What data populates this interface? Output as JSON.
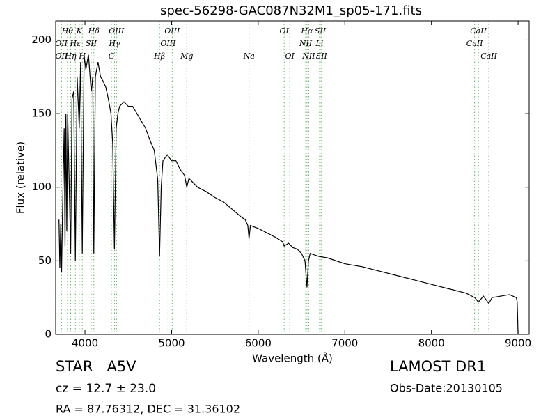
{
  "chart_data": {
    "type": "line",
    "title": "spec-56298-GAC087N32M1_sp05-171.fits",
    "x_label": "Wavelength (Å)",
    "y_label": "Flux (relative)",
    "xlim": [
      3662,
      9128
    ],
    "ylim": [
      0,
      213
    ],
    "xticks": [
      4000,
      5000,
      6000,
      7000,
      8000,
      9000
    ],
    "yticks": [
      0,
      50,
      100,
      150,
      200
    ],
    "grid": false,
    "color": "#000000",
    "line_marker_color": "#5cb85c",
    "x": [
      3700,
      3710,
      3720,
      3730,
      3740,
      3760,
      3770,
      3780,
      3790,
      3800,
      3815,
      3835,
      3850,
      3870,
      3889,
      3910,
      3934,
      3950,
      3969,
      3990,
      4010,
      4040,
      4072,
      4090,
      4102,
      4120,
      4150,
      4180,
      4210,
      4240,
      4270,
      4300,
      4320,
      4340,
      4360,
      4380,
      4400,
      4450,
      4500,
      4550,
      4600,
      4650,
      4700,
      4750,
      4800,
      4840,
      4861,
      4880,
      4900,
      4950,
      5000,
      5050,
      5100,
      5150,
      5175,
      5200,
      5300,
      5400,
      5500,
      5600,
      5700,
      5800,
      5850,
      5880,
      5894,
      5910,
      6000,
      6100,
      6200,
      6280,
      6300,
      6350,
      6400,
      6450,
      6500,
      6540,
      6563,
      6580,
      6600,
      6700,
      6800,
      6900,
      7000,
      7200,
      7400,
      7600,
      7800,
      8000,
      8200,
      8400,
      8500,
      8542,
      8600,
      8662,
      8700,
      8800,
      8900,
      8980,
      8990,
      9000
    ],
    "values": [
      78,
      45,
      75,
      42,
      80,
      140,
      60,
      150,
      70,
      150,
      110,
      55,
      160,
      165,
      50,
      175,
      140,
      185,
      55,
      190,
      180,
      190,
      165,
      175,
      55,
      175,
      185,
      175,
      172,
      168,
      160,
      150,
      130,
      58,
      140,
      150,
      155,
      158,
      155,
      155,
      150,
      145,
      140,
      132,
      125,
      105,
      53,
      100,
      118,
      122,
      118,
      118,
      112,
      108,
      100,
      106,
      100,
      97,
      93,
      90,
      85,
      80,
      78,
      74,
      65,
      74,
      72,
      69,
      66,
      63,
      60,
      62,
      59,
      58,
      55,
      50,
      32,
      50,
      55,
      53,
      52,
      50,
      48,
      46,
      43,
      40,
      37,
      34,
      31,
      28,
      25,
      22,
      26,
      21,
      25,
      26,
      27,
      25,
      22,
      0
    ],
    "line_labels": [
      [
        {
          "label": "Hθ",
          "wavelength": 3798
        },
        {
          "label": "K",
          "wavelength": 3934
        },
        {
          "label": "Hδ",
          "wavelength": 4102
        },
        {
          "label": "OIII",
          "wavelength": 4364
        },
        {
          "label": "OIII",
          "wavelength": 5007
        },
        {
          "label": "OI",
          "wavelength": 6300
        },
        {
          "label": "Hα",
          "wavelength": 6563
        },
        {
          "label": "SII",
          "wavelength": 6716
        },
        {
          "label": "CaII",
          "wavelength": 8542
        }
      ],
      [
        {
          "label": "OII",
          "wavelength": 3727
        },
        {
          "label": "Hε",
          "wavelength": 3889
        },
        {
          "label": "SII",
          "wavelength": 4072
        },
        {
          "label": "Hγ",
          "wavelength": 4341
        },
        {
          "label": "OIII",
          "wavelength": 4959
        },
        {
          "label": "NII",
          "wavelength": 6548
        },
        {
          "label": "Li",
          "wavelength": 6708
        },
        {
          "label": "CaII",
          "wavelength": 8498
        }
      ],
      [
        {
          "label": "OII",
          "wavelength": 3729
        },
        {
          "label": "Hη",
          "wavelength": 3835
        },
        {
          "label": "H",
          "wavelength": 3969
        },
        {
          "label": "G",
          "wavelength": 4305
        },
        {
          "label": "Hβ",
          "wavelength": 4861
        },
        {
          "label": "Mg",
          "wavelength": 5175
        },
        {
          "label": "Na",
          "wavelength": 5894
        },
        {
          "label": "OI",
          "wavelength": 6364
        },
        {
          "label": "NII",
          "wavelength": 6583
        },
        {
          "label": "SII",
          "wavelength": 6731
        },
        {
          "label": "CaII",
          "wavelength": 8662
        }
      ]
    ],
    "info": {
      "object": "STAR   A5V",
      "survey": "LAMOST DR1",
      "redshift": "cz = 12.7 ± 23.0",
      "obs_date": "Obs-Date:20130105",
      "coords": "RA = 87.76312, DEC = 31.36102"
    }
  }
}
